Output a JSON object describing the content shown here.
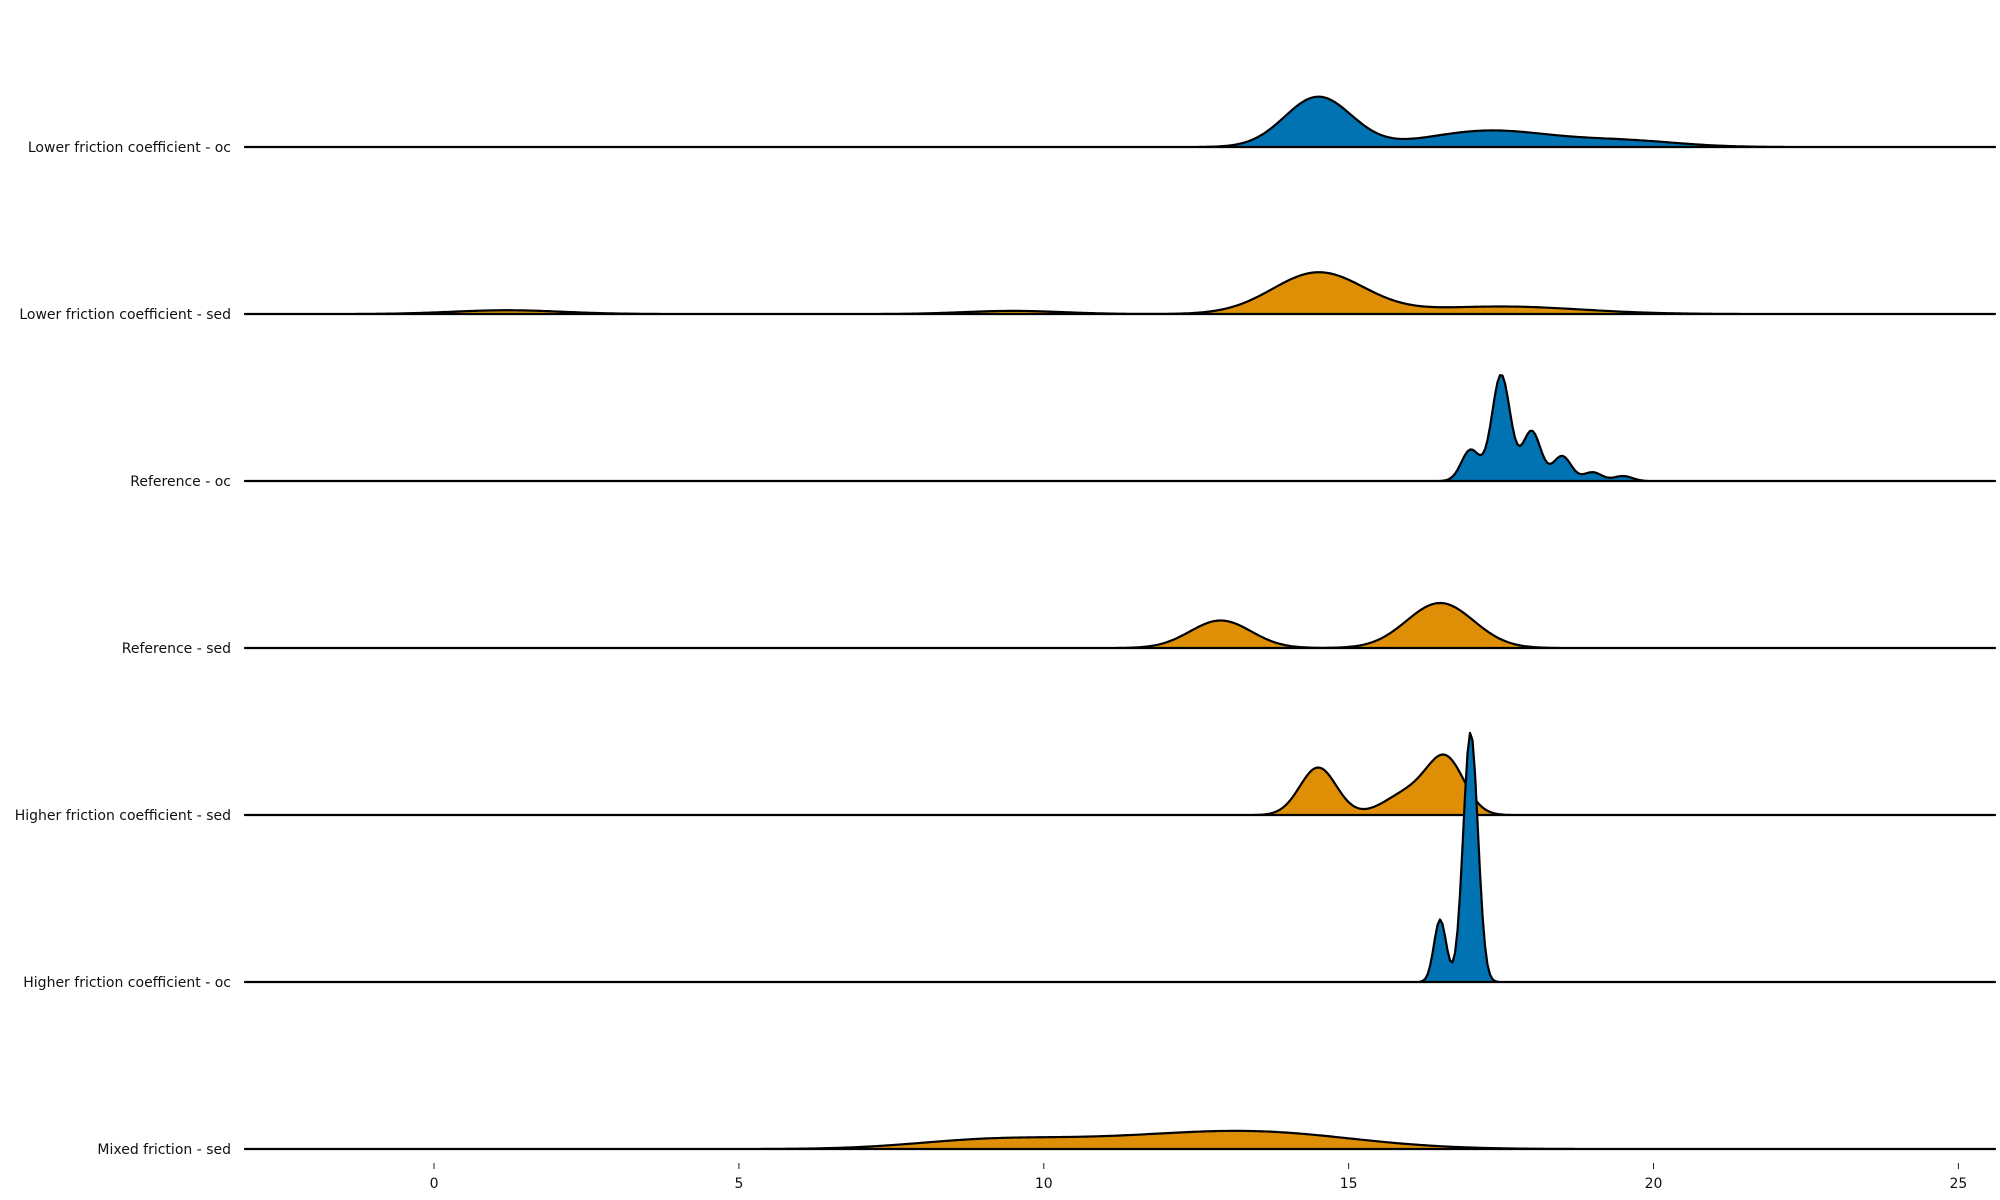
{
  "chart_data": {
    "type": "area",
    "title": "",
    "xlabel": "",
    "ylabel": "",
    "xlim": [
      -3.1,
      25.6
    ],
    "xticks": [
      0,
      5,
      10,
      15,
      20,
      25
    ],
    "grid": false,
    "legend": "none",
    "colors": {
      "oc": "#0173b2",
      "sed": "#de8f05"
    },
    "rows": [
      {
        "label": "Lower friction coefficient - oc",
        "group": "oc",
        "components": [
          {
            "mu": 14.5,
            "sigma": 0.55,
            "h": 0.4
          },
          {
            "mu": 17.3,
            "sigma": 1.0,
            "h": 0.13
          },
          {
            "mu": 19.5,
            "sigma": 0.9,
            "h": 0.05
          }
        ]
      },
      {
        "label": "Lower friction coefficient - sed",
        "group": "sed",
        "components": [
          {
            "mu": 14.5,
            "sigma": 0.75,
            "h": 0.33
          },
          {
            "mu": 17.5,
            "sigma": 1.3,
            "h": 0.06
          },
          {
            "mu": 1.2,
            "sigma": 0.9,
            "h": 0.03
          },
          {
            "mu": 9.5,
            "sigma": 0.8,
            "h": 0.025
          }
        ]
      },
      {
        "label": "Reference - oc",
        "group": "oc",
        "components": [
          {
            "mu": 17.0,
            "sigma": 0.15,
            "h": 0.25
          },
          {
            "mu": 17.5,
            "sigma": 0.15,
            "h": 0.85
          },
          {
            "mu": 18.0,
            "sigma": 0.15,
            "h": 0.4
          },
          {
            "mu": 18.5,
            "sigma": 0.15,
            "h": 0.2
          },
          {
            "mu": 19.0,
            "sigma": 0.15,
            "h": 0.07
          },
          {
            "mu": 19.5,
            "sigma": 0.15,
            "h": 0.04
          }
        ]
      },
      {
        "label": "Reference - sed",
        "group": "sed",
        "components": [
          {
            "mu": 12.9,
            "sigma": 0.5,
            "h": 0.22
          },
          {
            "mu": 16.5,
            "sigma": 0.55,
            "h": 0.36
          }
        ]
      },
      {
        "label": "Higher friction coefficient - sed",
        "group": "sed",
        "components": [
          {
            "mu": 14.5,
            "sigma": 0.3,
            "h": 0.38
          },
          {
            "mu": 16.0,
            "sigma": 0.4,
            "h": 0.18
          },
          {
            "mu": 16.6,
            "sigma": 0.3,
            "h": 0.42
          }
        ]
      },
      {
        "label": "Higher friction coefficient - oc",
        "group": "oc",
        "components": [
          {
            "mu": 16.5,
            "sigma": 0.1,
            "h": 0.5
          },
          {
            "mu": 17.0,
            "sigma": 0.12,
            "h": 2.0
          }
        ]
      },
      {
        "label": "Mixed friction - sed",
        "group": "sed",
        "components": [
          {
            "mu": 9.0,
            "sigma": 1.2,
            "h": 0.06
          },
          {
            "mu": 13.5,
            "sigma": 1.6,
            "h": 0.13
          },
          {
            "mu": 11.0,
            "sigma": 1.5,
            "h": 0.05
          }
        ]
      }
    ]
  }
}
